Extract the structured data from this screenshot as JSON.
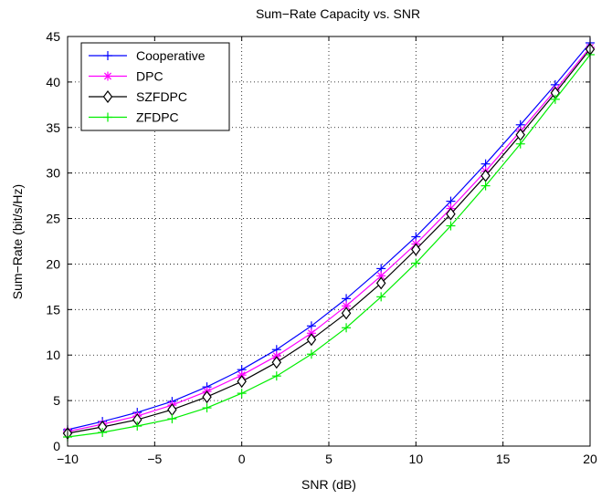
{
  "chart_data": {
    "type": "line",
    "title": "Sum−Rate Capacity vs. SNR",
    "xlabel": "SNR (dB)",
    "ylabel": "Sum−Rate (bit/s/Hz)",
    "xlim": [
      -10,
      20
    ],
    "ylim": [
      0,
      45
    ],
    "xticks": [
      -10,
      -5,
      0,
      5,
      10,
      15,
      20
    ],
    "yticks": [
      0,
      5,
      10,
      15,
      20,
      25,
      30,
      35,
      40,
      45
    ],
    "grid": true,
    "legend_position": "top-left",
    "x": [
      -10,
      -8,
      -6,
      -4,
      -2,
      0,
      2,
      4,
      6,
      8,
      10,
      12,
      14,
      16,
      18,
      20
    ],
    "series": [
      {
        "name": "Cooperative",
        "color": "#0000ff",
        "marker": "plus",
        "values": [
          1.8,
          2.7,
          3.7,
          4.9,
          6.5,
          8.4,
          10.6,
          13.2,
          16.2,
          19.5,
          23.0,
          26.9,
          31.0,
          35.3,
          39.7,
          44.3
        ]
      },
      {
        "name": "DPC",
        "color": "#ff00ff",
        "marker": "asterisk",
        "values": [
          1.6,
          2.4,
          3.3,
          4.5,
          6.0,
          7.8,
          9.9,
          12.4,
          15.4,
          18.7,
          22.2,
          26.1,
          30.2,
          34.6,
          39.1,
          43.8
        ]
      },
      {
        "name": "SZFDPC",
        "color": "#000000",
        "marker": "diamond",
        "values": [
          1.4,
          2.1,
          2.9,
          4.0,
          5.4,
          7.1,
          9.2,
          11.7,
          14.6,
          17.9,
          21.6,
          25.5,
          29.7,
          34.2,
          38.8,
          43.6
        ]
      },
      {
        "name": "ZFDPC",
        "color": "#00ee00",
        "marker": "plus",
        "values": [
          1.0,
          1.5,
          2.2,
          3.0,
          4.2,
          5.8,
          7.7,
          10.1,
          13.0,
          16.4,
          20.1,
          24.2,
          28.6,
          33.2,
          38.1,
          43.0
        ]
      }
    ]
  }
}
